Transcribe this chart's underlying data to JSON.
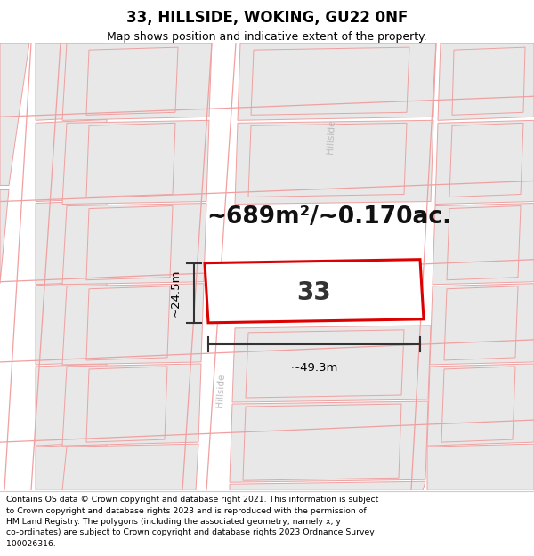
{
  "title": "33, HILLSIDE, WOKING, GU22 0NF",
  "subtitle": "Map shows position and indicative extent of the property.",
  "area_text": "~689m²/~0.170ac.",
  "number_label": "33",
  "dim_width": "~49.3m",
  "dim_height": "~24.5m",
  "footer_lines": [
    "Contains OS data © Crown copyright and database right 2021. This information is subject",
    "to Crown copyright and database rights 2023 and is reproduced with the permission of",
    "HM Land Registry. The polygons (including the associated geometry, namely x, y",
    "co-ordinates) are subject to Crown copyright and database rights 2023 Ordnance Survey",
    "100026316."
  ],
  "map_bg": "#ffffff",
  "highlight_color": "#dd0000",
  "neighbor_fill": "#e8e8e8",
  "neighbor_edge": "#f0a0a0",
  "road_color": "#f0a0a0",
  "hillside_label_color": "#bbbbbb",
  "dim_color": "#333333",
  "title_color": "#000000",
  "footer_color": "#000000",
  "area_color": "#111111"
}
